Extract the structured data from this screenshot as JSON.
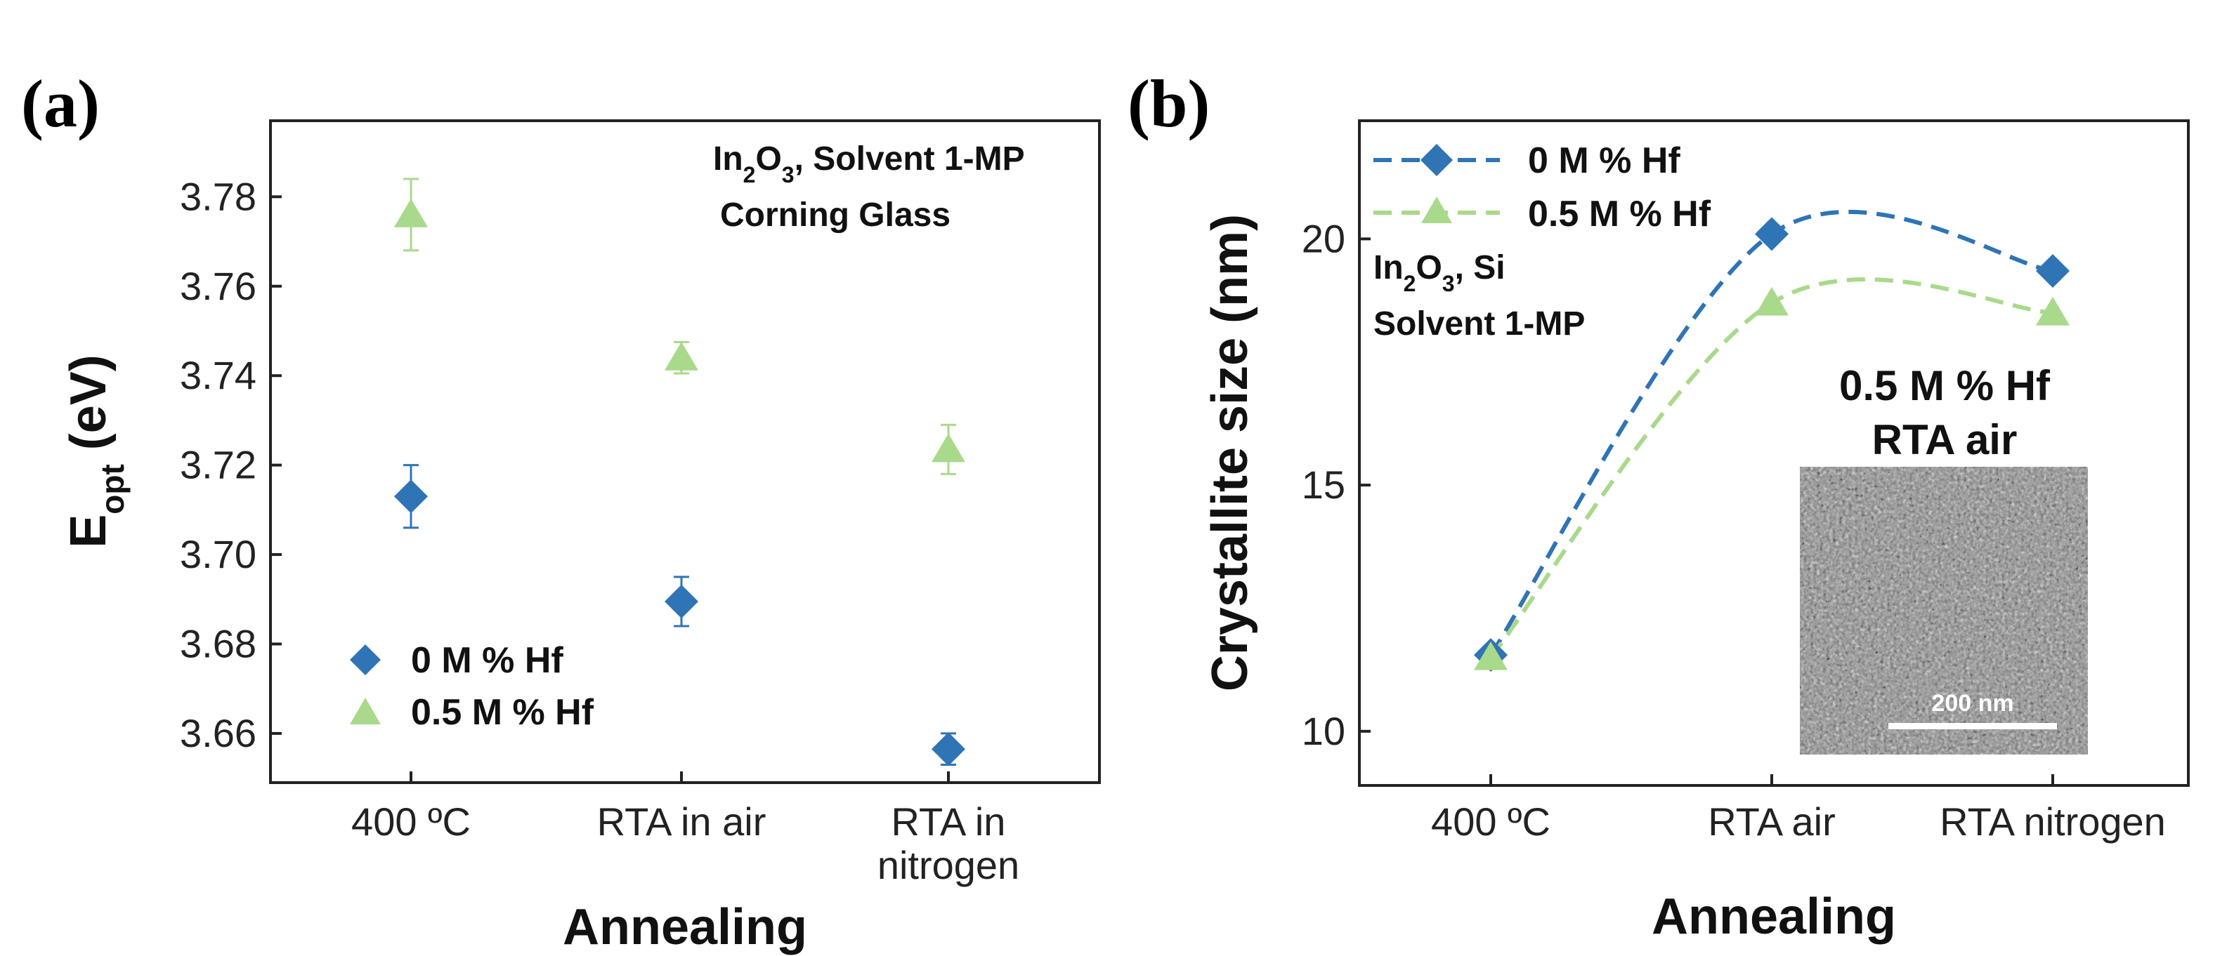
{
  "colors": {
    "hf0": "#2f74b5",
    "hf05": "#a9d98a",
    "axis": "#222222",
    "sem_bg": "#8a8a8a"
  },
  "chart_data": [
    {
      "type": "scatter",
      "panel_label": "(a)",
      "title": "",
      "xlabel": "Annealing",
      "ylabel": "E",
      "ylabel_sub": "opt",
      "ylabel_unit": " (eV)",
      "categories": [
        [
          "400 ºC"
        ],
        [
          "RTA in air"
        ],
        [
          "RTA in",
          "nitrogen"
        ]
      ],
      "ylim": [
        3.649,
        3.797
      ],
      "yticks": [
        3.66,
        3.68,
        3.7,
        3.72,
        3.74,
        3.76,
        3.78
      ],
      "ytick_labels": [
        "3.66",
        "3.68",
        "3.70",
        "3.72",
        "3.74",
        "3.76",
        "3.78"
      ],
      "series": [
        {
          "name": "0 M % Hf",
          "marker": "diamond",
          "values": [
            3.713,
            3.6895,
            3.6565
          ],
          "errors": [
            0.007,
            0.0055,
            0.0035
          ]
        },
        {
          "name": "0.5 M % Hf",
          "marker": "triangle",
          "values": [
            3.776,
            3.744,
            3.7235
          ],
          "errors": [
            0.008,
            0.0035,
            0.0055
          ]
        }
      ],
      "annotations": {
        "line1": {
          "main": "In",
          "sub1": "2",
          "mid": "O",
          "sub2": "3",
          "rest": ", Solvent 1-MP"
        },
        "line2": "Corning Glass"
      },
      "legend_position": "bottom-left"
    },
    {
      "type": "line",
      "panel_label": "(b)",
      "title": "",
      "xlabel": "Annealing",
      "ylabel": "Crystallite size (nm)",
      "categories": [
        "400 ºC",
        "RTA air",
        "RTA nitrogen"
      ],
      "ylim": [
        8.9,
        22.4
      ],
      "yticks": [
        10,
        15,
        20
      ],
      "ytick_labels": [
        "10",
        "15",
        "20"
      ],
      "series": [
        {
          "name": "0 M % Hf",
          "marker": "diamond",
          "line": "dashed",
          "values": [
            11.55,
            20.1,
            19.35
          ]
        },
        {
          "name": "0.5 M % Hf",
          "marker": "triangle",
          "line": "dashed",
          "values": [
            11.5,
            18.7,
            18.5
          ]
        }
      ],
      "annotations": {
        "line1": {
          "main": "In",
          "sub1": "2",
          "mid": "O",
          "sub2": "3",
          "rest": ", Si"
        },
        "line2": "Solvent 1-MP"
      },
      "inset": {
        "title_line1": "0.5 M % Hf",
        "title_line2": "RTA air",
        "scale_bar": "200 nm"
      },
      "legend_position": "top-left"
    }
  ]
}
